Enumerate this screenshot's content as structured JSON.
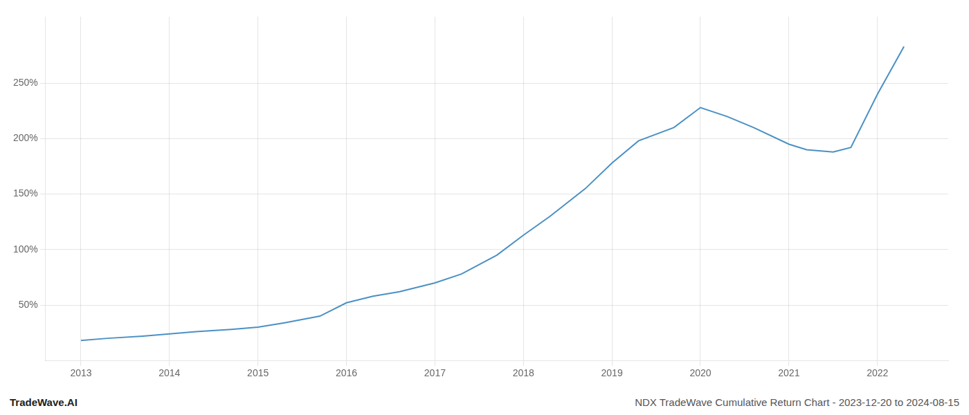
{
  "chart_data": {
    "type": "line",
    "x": [
      2013,
      2013.3,
      2013.7,
      2014,
      2014.3,
      2014.7,
      2015,
      2015.3,
      2015.7,
      2016,
      2016.3,
      2016.6,
      2017,
      2017.3,
      2017.7,
      2018,
      2018.3,
      2018.7,
      2019,
      2019.3,
      2019.7,
      2020,
      2020.3,
      2020.6,
      2021,
      2021.2,
      2021.5,
      2021.7,
      2022,
      2022.3
    ],
    "values": [
      18,
      20,
      22,
      24,
      26,
      28,
      30,
      34,
      40,
      52,
      58,
      62,
      70,
      78,
      95,
      113,
      130,
      155,
      178,
      198,
      210,
      228,
      220,
      210,
      195,
      190,
      188,
      192,
      240,
      283
    ],
    "color": "#4a90c4",
    "xlim": [
      2012.6,
      2022.8
    ],
    "xticks": [
      2013,
      2014,
      2015,
      2016,
      2017,
      2018,
      2019,
      2020,
      2021,
      2022
    ],
    "ylim": [
      0,
      310
    ],
    "yticks": [
      {
        "value": 50,
        "label": "50%"
      },
      {
        "value": 100,
        "label": "100%"
      },
      {
        "value": 150,
        "label": "150%"
      },
      {
        "value": 200,
        "label": "200%"
      },
      {
        "value": 250,
        "label": "250%"
      }
    ],
    "grid": true,
    "annotations": [
      "TradeWave.AI",
      "NDX TradeWave Cumulative Return Chart - 2023-12-20 to 2024-08-15"
    ]
  }
}
